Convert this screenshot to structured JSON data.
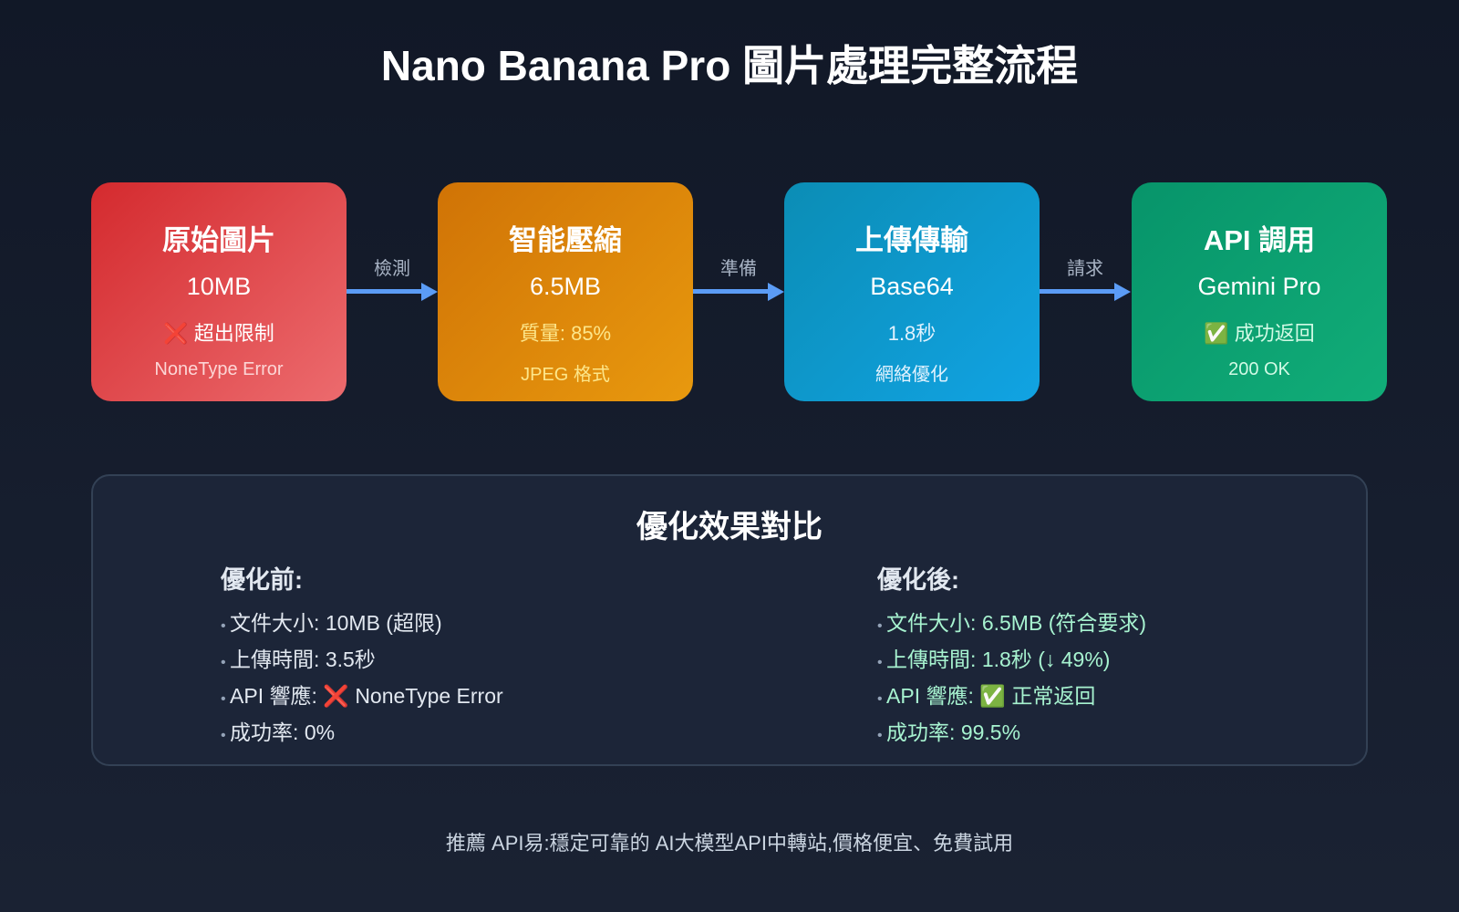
{
  "title": "Nano Banana Pro 圖片處理完整流程",
  "steps": [
    {
      "name": "原始圖片",
      "value": "10MB",
      "status": "❌ 超出限制",
      "note": "NoneType Error"
    },
    {
      "name": "智能壓縮",
      "value": "6.5MB",
      "status": "質量: 85%",
      "note": "JPEG 格式"
    },
    {
      "name": "上傳傳輸",
      "value": "Base64",
      "status": "1.8秒",
      "note": "網絡優化"
    },
    {
      "name": "API 調用",
      "value": "Gemini Pro",
      "status": "✅ 成功返回",
      "note": "200 OK"
    }
  ],
  "arrows": [
    "檢測",
    "準備",
    "請求"
  ],
  "colors": {
    "arrow": "#5b9cf6",
    "step1": "#dc2626",
    "step2": "#d97706",
    "step3": "#0ea5e9",
    "step4": "#10b981"
  },
  "comparison": {
    "title": "優化效果對比",
    "before": {
      "heading": "優化前:",
      "items": [
        "文件大小: 10MB (超限)",
        "上傳時間: 3.5秒",
        "API 響應: ❌ NoneType Error",
        "成功率: 0%"
      ]
    },
    "after": {
      "heading": "優化後:",
      "items": [
        "文件大小: 6.5MB (符合要求)",
        "上傳時間: 1.8秒 (↓ 49%)",
        "API 響應: ✅ 正常返回",
        "成功率: 99.5%"
      ]
    }
  },
  "footer": "推薦 API易:穩定可靠的 AI大模型API中轉站,價格便宜、免費試用"
}
